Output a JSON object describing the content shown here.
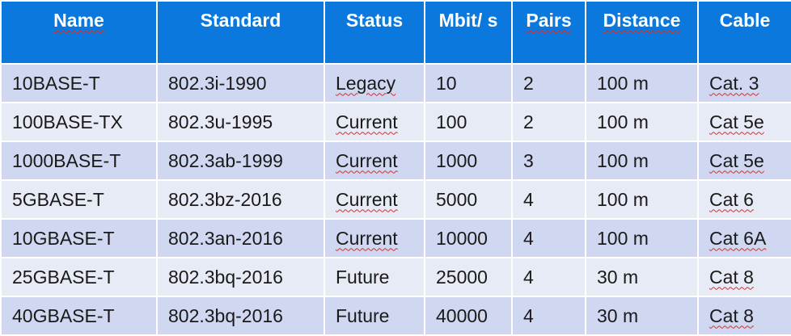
{
  "table": {
    "headers": [
      "Name",
      "Standard",
      "Status",
      "Mbit/ s",
      "Pairs",
      "Distance",
      "Cable"
    ],
    "rows": [
      [
        "10BASE-T",
        "802.3i-1990",
        "Legacy",
        "10",
        "2",
        "100 m",
        "Cat. 3"
      ],
      [
        "100BASE-TX",
        "802.3u-1995",
        "Current",
        "100",
        "2",
        "100 m",
        "Cat 5e"
      ],
      [
        "1000BASE-T",
        "802.3ab-1999",
        "Current",
        "1000",
        "3",
        "100 m",
        "Cat 5e"
      ],
      [
        "5GBASE-T",
        "802.3bz-2016",
        "Current",
        "5000",
        "4",
        "100 m",
        "Cat 6"
      ],
      [
        "10GBASE-T",
        "802.3an-2016",
        "Current",
        "10000",
        "4",
        "100 m",
        "Cat 6A"
      ],
      [
        "25GBASE-T",
        "802.3bq-2016",
        "Future",
        "25000",
        "4",
        "30 m",
        "Cat 8"
      ],
      [
        "40GBASE-T",
        "802.3bq-2016",
        "Future",
        "40000",
        "4",
        "30 m",
        "Cat 8"
      ]
    ]
  },
  "colors": {
    "header_bg": "#0a78dc",
    "row_band_dark": "#cfd8f0",
    "row_band_light": "#e7ebf6",
    "spellcheck_underline": "#d23030"
  }
}
